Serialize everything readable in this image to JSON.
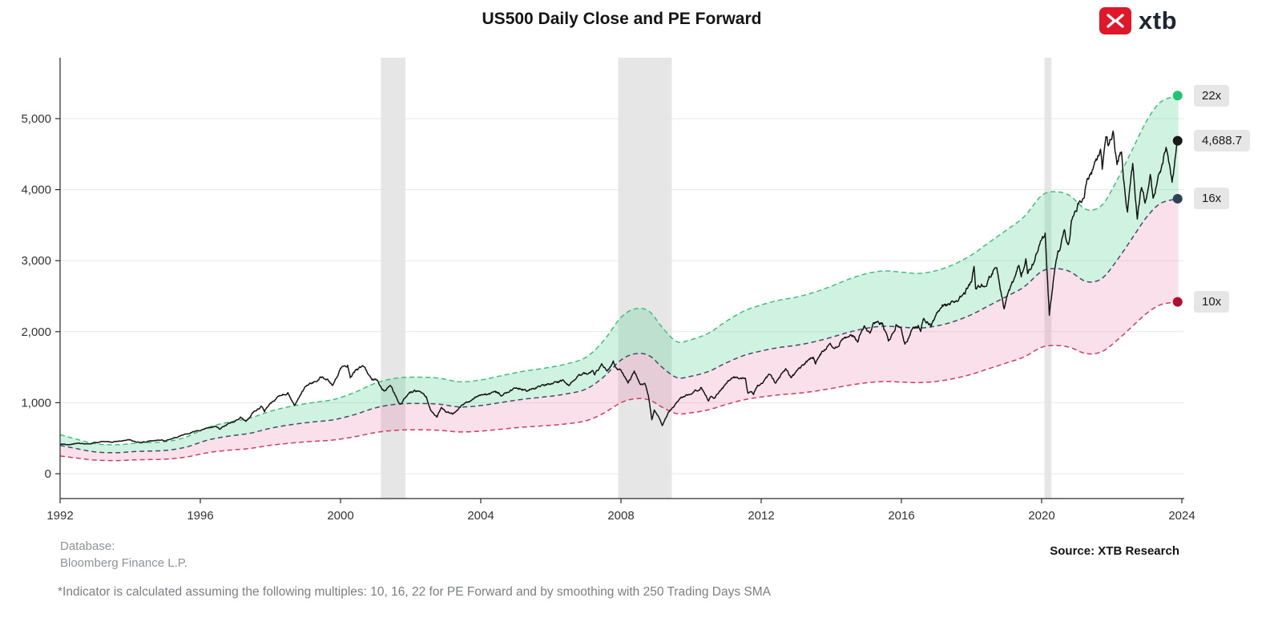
{
  "title": "US500 Daily Close and PE Forward",
  "logo": {
    "text": "xtb",
    "icon": "xtb-chevrons-icon",
    "brand_color": "#e01728"
  },
  "footer": {
    "database_label": "Database:",
    "database_value": "Bloomberg Finance L.P.",
    "source": "Source: XTB Research",
    "footnote": "*Indicator is calculated assuming the following multiples: 10, 16, 22 for PE Forward and by smoothing with 250 Trading Days SMA"
  },
  "chart_data": {
    "type": "line",
    "title": "US500 Daily Close and PE Forward",
    "xlabel": "",
    "ylabel": "",
    "xlim": [
      1992,
      2024.1
    ],
    "ylim": [
      0,
      5860
    ],
    "grid": "horizontal",
    "legend_position": "right-end-labels",
    "x_tick_years": [
      1992,
      1996,
      2000,
      2004,
      2008,
      2012,
      2016,
      2020,
      2024
    ],
    "x_tick_labels": [
      "1992",
      "1996",
      "2000",
      "2004",
      "2008",
      "2012",
      "2016",
      "2020",
      "2024"
    ],
    "y_ticks": [
      0,
      1000,
      2000,
      3000,
      4000,
      5000
    ],
    "y_tick_labels": [
      "0",
      "1,000",
      "2,000",
      "3,000",
      "4,000",
      "5,000"
    ],
    "recession_shading": [
      [
        2001.15,
        2001.85
      ],
      [
        2007.92,
        2009.45
      ],
      [
        2020.08,
        2020.28
      ]
    ],
    "pe_multiples": [
      10,
      16,
      22
    ],
    "pe_forward_10x": [
      [
        1992.0,
        250
      ],
      [
        1992.4,
        225
      ],
      [
        1993.0,
        192
      ],
      [
        1993.6,
        185
      ],
      [
        1994.2,
        196
      ],
      [
        1995.0,
        205
      ],
      [
        1995.6,
        235
      ],
      [
        1996.2,
        295
      ],
      [
        1996.8,
        330
      ],
      [
        1997.4,
        355
      ],
      [
        1998.0,
        400
      ],
      [
        1998.6,
        432
      ],
      [
        1999.2,
        455
      ],
      [
        1999.8,
        475
      ],
      [
        2000.4,
        520
      ],
      [
        2001.0,
        580
      ],
      [
        2001.6,
        612
      ],
      [
        2002.2,
        618
      ],
      [
        2002.8,
        612
      ],
      [
        2003.4,
        588
      ],
      [
        2004.0,
        600
      ],
      [
        2004.6,
        628
      ],
      [
        2005.2,
        655
      ],
      [
        2005.8,
        675
      ],
      [
        2006.4,
        700
      ],
      [
        2007.0,
        745
      ],
      [
        2007.5,
        850
      ],
      [
        2008.0,
        1000
      ],
      [
        2008.4,
        1055
      ],
      [
        2008.8,
        1040
      ],
      [
        2009.2,
        930
      ],
      [
        2009.6,
        845
      ],
      [
        2010.0,
        858
      ],
      [
        2010.5,
        900
      ],
      [
        2011.0,
        975
      ],
      [
        2011.5,
        1040
      ],
      [
        2012.0,
        1080
      ],
      [
        2012.5,
        1110
      ],
      [
        2013.0,
        1130
      ],
      [
        2013.5,
        1160
      ],
      [
        2014.0,
        1200
      ],
      [
        2014.5,
        1245
      ],
      [
        2015.0,
        1280
      ],
      [
        2015.5,
        1298
      ],
      [
        2016.0,
        1290
      ],
      [
        2016.5,
        1282
      ],
      [
        2017.0,
        1300
      ],
      [
        2017.5,
        1340
      ],
      [
        2018.0,
        1400
      ],
      [
        2018.5,
        1480
      ],
      [
        2019.0,
        1560
      ],
      [
        2019.5,
        1645
      ],
      [
        2020.0,
        1780
      ],
      [
        2020.4,
        1805
      ],
      [
        2020.8,
        1780
      ],
      [
        2021.2,
        1700
      ],
      [
        2021.5,
        1690
      ],
      [
        2021.8,
        1740
      ],
      [
        2022.2,
        1900
      ],
      [
        2022.6,
        2080
      ],
      [
        2023.0,
        2260
      ],
      [
        2023.4,
        2380
      ],
      [
        2023.9,
        2420
      ]
    ],
    "us500_close": [
      [
        1992.0,
        417
      ],
      [
        1992.25,
        408
      ],
      [
        1992.5,
        424
      ],
      [
        1992.75,
        418
      ],
      [
        1993.0,
        435
      ],
      [
        1993.25,
        452
      ],
      [
        1993.5,
        448
      ],
      [
        1993.75,
        459
      ],
      [
        1994.0,
        478
      ],
      [
        1994.15,
        447
      ],
      [
        1994.35,
        445
      ],
      [
        1994.55,
        458
      ],
      [
        1994.8,
        472
      ],
      [
        1995.0,
        465
      ],
      [
        1995.25,
        501
      ],
      [
        1995.5,
        545
      ],
      [
        1995.75,
        584
      ],
      [
        1996.0,
        616
      ],
      [
        1996.2,
        645
      ],
      [
        1996.45,
        671
      ],
      [
        1996.55,
        635
      ],
      [
        1996.8,
        700
      ],
      [
        1997.0,
        741
      ],
      [
        1997.15,
        790
      ],
      [
        1997.3,
        737
      ],
      [
        1997.55,
        885
      ],
      [
        1997.75,
        947
      ],
      [
        1997.83,
        876
      ],
      [
        1997.95,
        963
      ],
      [
        1998.3,
        1111
      ],
      [
        1998.5,
        1134
      ],
      [
        1998.68,
        957
      ],
      [
        1998.85,
        1099
      ],
      [
        1999.0,
        1229
      ],
      [
        1999.3,
        1307
      ],
      [
        1999.5,
        1373
      ],
      [
        1999.78,
        1248
      ],
      [
        2000.0,
        1469
      ],
      [
        2000.2,
        1527
      ],
      [
        2000.28,
        1356
      ],
      [
        2000.45,
        1455
      ],
      [
        2000.65,
        1517
      ],
      [
        2000.9,
        1315
      ],
      [
        2001.0,
        1335
      ],
      [
        2001.25,
        1160
      ],
      [
        2001.42,
        1255
      ],
      [
        2001.7,
        966
      ],
      [
        2001.95,
        1148
      ],
      [
        2002.2,
        1165
      ],
      [
        2002.45,
        1077
      ],
      [
        2002.58,
        880
      ],
      [
        2002.75,
        797
      ],
      [
        2002.88,
        936
      ],
      [
        2003.0,
        880
      ],
      [
        2003.2,
        841
      ],
      [
        2003.45,
        963
      ],
      [
        2003.7,
        1020
      ],
      [
        2003.95,
        1108
      ],
      [
        2004.25,
        1126
      ],
      [
        2004.5,
        1141
      ],
      [
        2004.62,
        1102
      ],
      [
        2004.85,
        1174
      ],
      [
        2005.0,
        1212
      ],
      [
        2005.3,
        1172
      ],
      [
        2005.55,
        1204
      ],
      [
        2005.8,
        1234
      ],
      [
        2006.0,
        1268
      ],
      [
        2006.35,
        1311
      ],
      [
        2006.5,
        1245
      ],
      [
        2006.8,
        1378
      ],
      [
        2007.0,
        1418
      ],
      [
        2007.18,
        1438
      ],
      [
        2007.25,
        1387
      ],
      [
        2007.45,
        1530
      ],
      [
        2007.6,
        1427
      ],
      [
        2007.78,
        1565
      ],
      [
        2007.9,
        1445
      ],
      [
        2008.0,
        1468
      ],
      [
        2008.2,
        1273
      ],
      [
        2008.38,
        1426
      ],
      [
        2008.55,
        1260
      ],
      [
        2008.68,
        1282
      ],
      [
        2008.78,
        1106
      ],
      [
        2008.88,
        752
      ],
      [
        2008.95,
        890
      ],
      [
        2009.05,
        825
      ],
      [
        2009.18,
        677
      ],
      [
        2009.35,
        870
      ],
      [
        2009.5,
        946
      ],
      [
        2009.7,
        1070
      ],
      [
        2009.95,
        1115
      ],
      [
        2010.1,
        1150
      ],
      [
        2010.3,
        1217
      ],
      [
        2010.5,
        1031
      ],
      [
        2010.57,
        1090
      ],
      [
        2010.65,
        1050
      ],
      [
        2010.85,
        1184
      ],
      [
        2011.0,
        1258
      ],
      [
        2011.15,
        1330
      ],
      [
        2011.33,
        1364
      ],
      [
        2011.55,
        1340
      ],
      [
        2011.62,
        1120
      ],
      [
        2011.72,
        1162
      ],
      [
        2011.78,
        1100
      ],
      [
        2011.9,
        1253
      ],
      [
        2012.0,
        1258
      ],
      [
        2012.25,
        1408
      ],
      [
        2012.42,
        1278
      ],
      [
        2012.7,
        1466
      ],
      [
        2012.85,
        1353
      ],
      [
        2013.0,
        1426
      ],
      [
        2013.3,
        1569
      ],
      [
        2013.48,
        1655
      ],
      [
        2013.55,
        1573
      ],
      [
        2013.75,
        1710
      ],
      [
        2013.95,
        1842
      ],
      [
        2014.1,
        1741
      ],
      [
        2014.3,
        1884
      ],
      [
        2014.55,
        1985
      ],
      [
        2014.75,
        1862
      ],
      [
        2014.95,
        2080
      ],
      [
        2015.1,
        1990
      ],
      [
        2015.2,
        2108
      ],
      [
        2015.45,
        2126
      ],
      [
        2015.63,
        1868
      ],
      [
        2015.75,
        1990
      ],
      [
        2015.85,
        2102
      ],
      [
        2016.0,
        2044
      ],
      [
        2016.1,
        1829
      ],
      [
        2016.35,
        2066
      ],
      [
        2016.48,
        2099
      ],
      [
        2016.55,
        2001
      ],
      [
        2016.62,
        2175
      ],
      [
        2016.85,
        2085
      ],
      [
        2017.0,
        2239
      ],
      [
        2017.17,
        2363
      ],
      [
        2017.4,
        2391
      ],
      [
        2017.6,
        2476
      ],
      [
        2017.8,
        2557
      ],
      [
        2018.0,
        2696
      ],
      [
        2018.07,
        2873
      ],
      [
        2018.12,
        2581
      ],
      [
        2018.25,
        2640
      ],
      [
        2018.45,
        2718
      ],
      [
        2018.72,
        2931
      ],
      [
        2018.82,
        2633
      ],
      [
        2018.93,
        2351
      ],
      [
        2019.0,
        2507
      ],
      [
        2019.28,
        2834
      ],
      [
        2019.35,
        2945
      ],
      [
        2019.42,
        2744
      ],
      [
        2019.55,
        3026
      ],
      [
        2019.6,
        2847
      ],
      [
        2019.75,
        2977
      ],
      [
        2019.95,
        3231
      ],
      [
        2020.1,
        3386
      ],
      [
        2020.22,
        2237
      ],
      [
        2020.35,
        2790
      ],
      [
        2020.45,
        3055
      ],
      [
        2020.65,
        3397
      ],
      [
        2020.7,
        3237
      ],
      [
        2020.78,
        3270
      ],
      [
        2020.85,
        3585
      ],
      [
        2021.0,
        3756
      ],
      [
        2021.2,
        3943
      ],
      [
        2021.35,
        4181
      ],
      [
        2021.5,
        4298
      ],
      [
        2021.68,
        4537
      ],
      [
        2021.73,
        4308
      ],
      [
        2021.85,
        4701
      ],
      [
        2021.9,
        4594
      ],
      [
        2022.0,
        4766
      ],
      [
        2022.04,
        4797
      ],
      [
        2022.15,
        4329
      ],
      [
        2022.28,
        4583
      ],
      [
        2022.35,
        4132
      ],
      [
        2022.45,
        3667
      ],
      [
        2022.6,
        4305
      ],
      [
        2022.73,
        3586
      ],
      [
        2022.85,
        4080
      ],
      [
        2022.95,
        3840
      ],
      [
        2023.1,
        4179
      ],
      [
        2023.18,
        3855
      ],
      [
        2023.35,
        4169
      ],
      [
        2023.55,
        4589
      ],
      [
        2023.72,
        4117
      ],
      [
        2023.88,
        4688.7
      ]
    ],
    "end_labels": [
      {
        "label": "22x",
        "value": 5324,
        "dot_color": "#22c46e"
      },
      {
        "label": "4,688.7",
        "value": 4688.7,
        "dot_color": "#1a1a1a"
      },
      {
        "label": "16x",
        "value": 3872,
        "dot_color": "#2f4254"
      },
      {
        "label": "10x",
        "value": 2420,
        "dot_color": "#b01030"
      }
    ],
    "colors": {
      "close_line": "#141414",
      "line_22x": "#3fbf7f",
      "line_16x": "#3d5160",
      "line_10x": "#cf3e61",
      "band_green_fill": "rgba(101,213,153,0.30)",
      "band_pink_fill": "rgba(232,116,160,0.22)",
      "recession_band": "#e3e3e3",
      "gridline": "#e7e7e7",
      "axis": "#2a2a2a",
      "tick_label": "#333333",
      "label_box_bg": "#e6e6e6"
    }
  }
}
